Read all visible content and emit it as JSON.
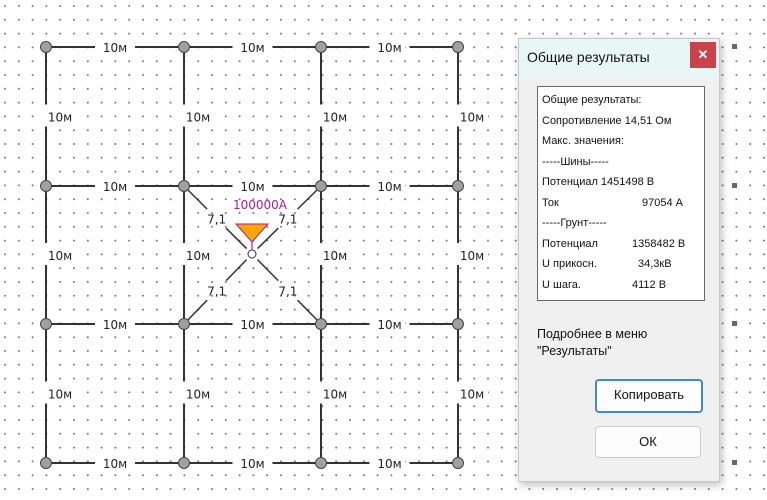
{
  "canvas": {
    "segment_label": "10м",
    "diagonal_label": "7,1",
    "source_label": "100000А",
    "colors": {
      "source_fill": "#ffa500",
      "source_outline": "#a020a0",
      "node_fill": "#a0a0a0",
      "line": "#333333"
    }
  },
  "dialog": {
    "title": "Общие результаты",
    "close_icon": "close-icon",
    "results": [
      {
        "label": "Общие результаты:",
        "value": ""
      },
      {
        "label": "Сопротивление 14,51 Ом",
        "value": ""
      },
      {
        "label": "Макс. значения:",
        "value": ""
      },
      {
        "label": "-----Шины-----",
        "value": ""
      },
      {
        "label": "Потенциал 1451498 В",
        "value": ""
      },
      {
        "label": "Ток",
        "value": "97054 А"
      },
      {
        "label": "-----Грунт-----",
        "value": ""
      },
      {
        "label": "Потенциал",
        "value": "1358482 В"
      },
      {
        "label": "U прикосн.",
        "value": "34,3кВ"
      },
      {
        "label": "U шага.",
        "value": "4112 В"
      }
    ],
    "more_line1": "Подробнее в меню",
    "more_line2": "\"Результаты\"",
    "copy_label": "Копировать",
    "ok_label": "ОК"
  }
}
